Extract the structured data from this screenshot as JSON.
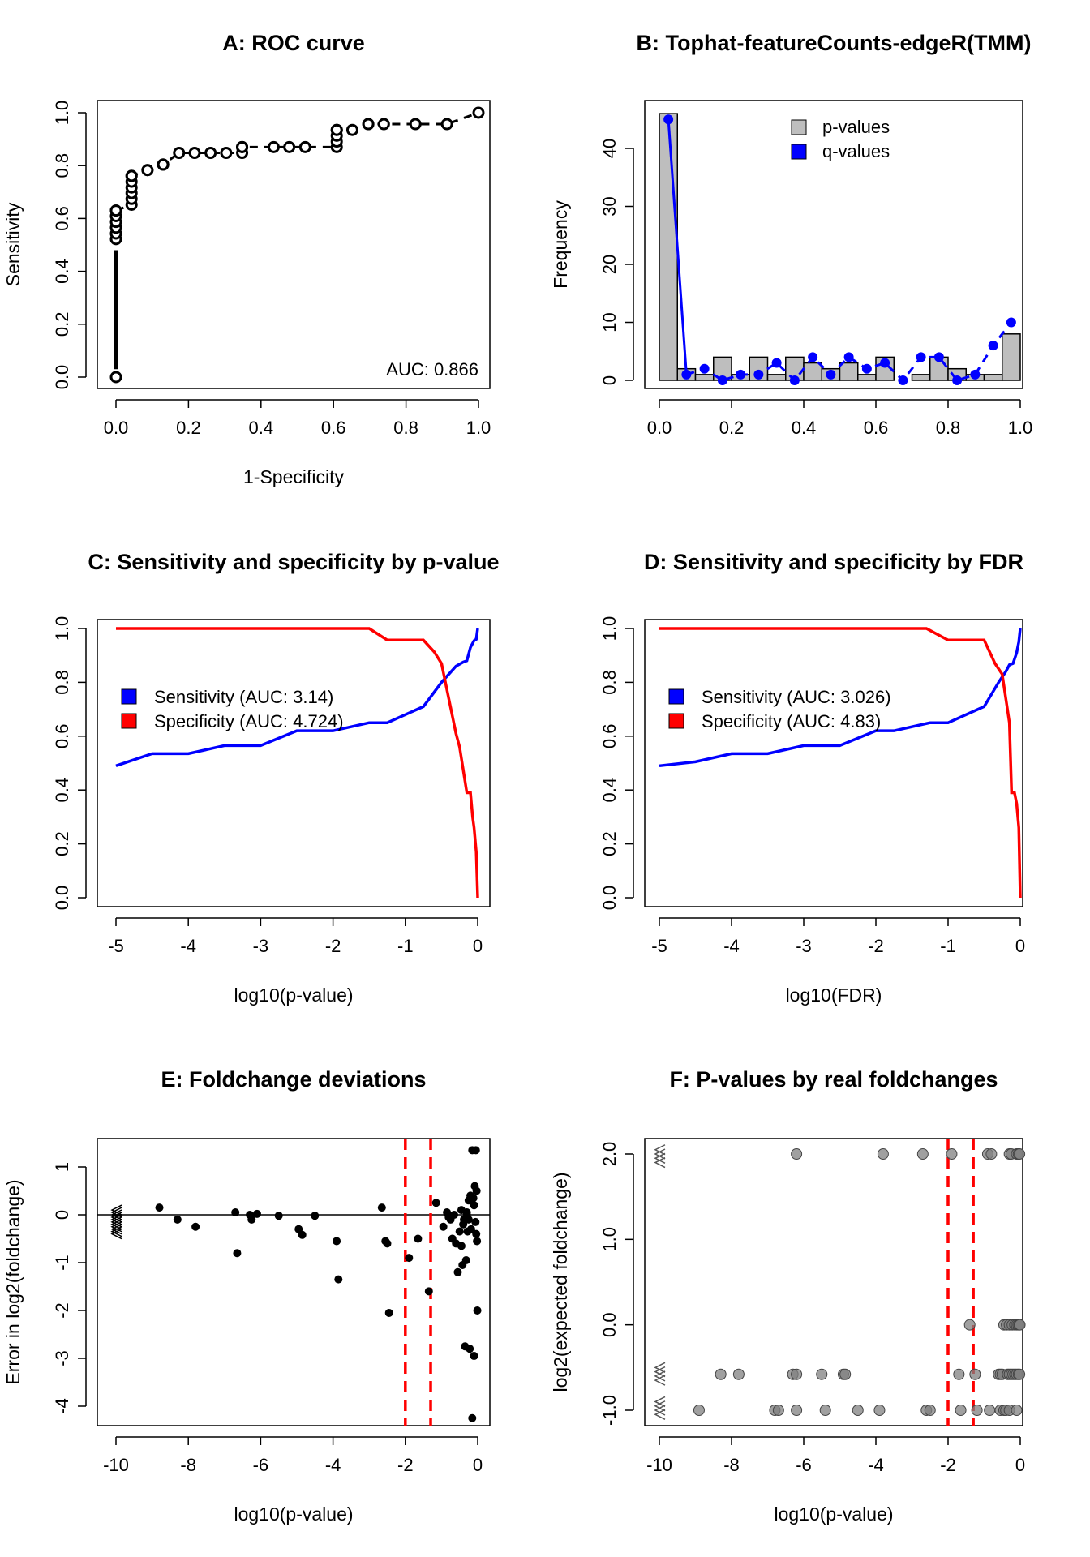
{
  "chart_data": [
    {
      "id": "A",
      "type": "scatter",
      "title": "A: ROC curve",
      "xlabel": "1-Specificity",
      "ylabel": "Sensitivity",
      "xlim": [
        0,
        1
      ],
      "ylim": [
        0,
        1
      ],
      "xticks": [
        0,
        0.2,
        0.4,
        0.6,
        0.8,
        1
      ],
      "xtick_labels": [
        "0.0",
        "0.2",
        "0.4",
        "0.6",
        "0.8",
        "1.0"
      ],
      "yticks": [
        0,
        0.2,
        0.4,
        0.6,
        0.8,
        1
      ],
      "ytick_labels": [
        "0.0",
        "0.2",
        "0.4",
        "0.6",
        "0.8",
        "1.0"
      ],
      "annotation": "AUC: 0.866",
      "x": [
        0,
        0,
        0,
        0,
        0,
        0,
        0,
        0,
        0.043,
        0.043,
        0.043,
        0.043,
        0.043,
        0.043,
        0.043,
        0.087,
        0.087,
        0.13,
        0.13,
        0.13,
        0.174,
        0.217,
        0.261,
        0.304,
        0.348,
        0.348,
        0.348,
        0.348,
        0.435,
        0.478,
        0.522,
        0.609,
        0.609,
        0.609,
        0.609,
        0.609,
        0.652,
        0.696,
        0.696,
        0.739,
        0.826,
        0.913,
        1.0
      ],
      "y": [
        0,
        0.522,
        0.543,
        0.565,
        0.587,
        0.609,
        0.63,
        0.63,
        0.652,
        0.674,
        0.696,
        0.717,
        0.739,
        0.761,
        0.761,
        0.783,
        0.783,
        0.804,
        0.804,
        0.804,
        0.848,
        0.848,
        0.848,
        0.848,
        0.848,
        0.87,
        0.87,
        0.87,
        0.87,
        0.87,
        0.87,
        0.87,
        0.891,
        0.913,
        0.935,
        0.935,
        0.935,
        0.957,
        0.957,
        0.957,
        0.957,
        0.957,
        1.0
      ],
      "color": "#000000"
    },
    {
      "id": "B",
      "type": "bar",
      "title": "B: Tophat-featureCounts-edgeR(TMM)",
      "xlabel": "",
      "ylabel": "Frequency",
      "xlim": [
        0,
        1
      ],
      "ylim": [
        0,
        47
      ],
      "xticks": [
        0,
        0.2,
        0.4,
        0.6,
        0.8,
        1
      ],
      "xtick_labels": [
        "0.0",
        "0.2",
        "0.4",
        "0.6",
        "0.8",
        "1.0"
      ],
      "yticks": [
        0,
        10,
        20,
        30,
        40
      ],
      "ytick_labels": [
        "0",
        "10",
        "20",
        "30",
        "40"
      ],
      "bin_width": 0.05,
      "legend": [
        "p-values",
        "q-values"
      ],
      "legend_position": "top-center",
      "series": [
        {
          "name": "p-values",
          "type": "bar",
          "color": "#bebebe",
          "values": [
            46,
            2,
            1,
            4,
            1,
            4,
            1,
            4,
            3,
            2,
            3,
            1,
            4,
            0,
            1,
            4,
            2,
            1,
            1,
            8
          ]
        },
        {
          "name": "q-values",
          "type": "line",
          "color": "#0000ff",
          "values": [
            45,
            1,
            2,
            0,
            1,
            1,
            3,
            0,
            4,
            1,
            4,
            2,
            3,
            0,
            4,
            4,
            0,
            1,
            6,
            10
          ]
        }
      ]
    },
    {
      "id": "C",
      "type": "line",
      "title": "C: Sensitivity and specificity by p-value",
      "xlabel": "log10(p-value)",
      "ylabel": "",
      "xlim": [
        -5,
        0
      ],
      "ylim": [
        0,
        1
      ],
      "xticks": [
        -5,
        -4,
        -3,
        -2,
        -1,
        0
      ],
      "xtick_labels": [
        "-5",
        "-4",
        "-3",
        "-2",
        "-1",
        "0"
      ],
      "yticks": [
        0,
        0.2,
        0.4,
        0.6,
        0.8,
        1
      ],
      "ytick_labels": [
        "0.0",
        "0.2",
        "0.4",
        "0.6",
        "0.8",
        "1.0"
      ],
      "legend": [
        "Sensitivity (AUC: 3.14)",
        "Specificity (AUC: 4.724)"
      ],
      "legend_position": "middle-left",
      "series": [
        {
          "name": "Sensitivity (AUC: 3.14)",
          "color": "#0000ff",
          "x": [
            -5,
            -4.5,
            -4,
            -3.5,
            -3,
            -2.5,
            -2,
            -1.5,
            -1.25,
            -0.75,
            -0.5,
            -0.4,
            -0.3,
            -0.2,
            -0.15,
            -0.1,
            -0.05,
            -0.02,
            0
          ],
          "y": [
            0.49,
            0.535,
            0.535,
            0.565,
            0.565,
            0.62,
            0.62,
            0.65,
            0.65,
            0.71,
            0.8,
            0.83,
            0.86,
            0.875,
            0.88,
            0.93,
            0.955,
            0.96,
            1.0
          ]
        },
        {
          "name": "Specificity (AUC: 4.724)",
          "color": "#ff0000",
          "x": [
            -5,
            -1.5,
            -1.25,
            -0.75,
            -0.6,
            -0.5,
            -0.4,
            -0.3,
            -0.25,
            -0.15,
            -0.12,
            -0.1,
            -0.07,
            -0.05,
            -0.02,
            0
          ],
          "y": [
            1,
            1,
            0.957,
            0.957,
            0.913,
            0.87,
            0.74,
            0.61,
            0.56,
            0.39,
            0.39,
            0.39,
            0.3,
            0.26,
            0.17,
            0
          ]
        }
      ]
    },
    {
      "id": "D",
      "type": "line",
      "title": "D: Sensitivity and specificity by FDR",
      "xlabel": "log10(FDR)",
      "ylabel": "",
      "xlim": [
        -5,
        0
      ],
      "ylim": [
        0,
        1
      ],
      "xticks": [
        -5,
        -4,
        -3,
        -2,
        -1,
        0
      ],
      "xtick_labels": [
        "-5",
        "-4",
        "-3",
        "-2",
        "-1",
        "0"
      ],
      "yticks": [
        0,
        0.2,
        0.4,
        0.6,
        0.8,
        1
      ],
      "ytick_labels": [
        "0.0",
        "0.2",
        "0.4",
        "0.6",
        "0.8",
        "1.0"
      ],
      "legend": [
        "Sensitivity (AUC: 3.026)",
        "Specificity (AUC: 4.83)"
      ],
      "legend_position": "middle-left",
      "series": [
        {
          "name": "Sensitivity (AUC: 3.026)",
          "color": "#0000ff",
          "x": [
            -5,
            -4.5,
            -4,
            -3.5,
            -3,
            -2.5,
            -2,
            -1.75,
            -1.25,
            -1,
            -0.5,
            -0.3,
            -0.2,
            -0.15,
            -0.1,
            -0.05,
            -0.02,
            0
          ],
          "y": [
            0.49,
            0.505,
            0.535,
            0.535,
            0.565,
            0.565,
            0.62,
            0.62,
            0.65,
            0.65,
            0.71,
            0.8,
            0.84,
            0.865,
            0.87,
            0.91,
            0.95,
            1.0
          ]
        },
        {
          "name": "Specificity (AUC: 4.83)",
          "color": "#ff0000",
          "x": [
            -5,
            -1.3,
            -1,
            -0.5,
            -0.35,
            -0.25,
            -0.2,
            -0.15,
            -0.12,
            -0.08,
            -0.05,
            -0.02,
            0
          ],
          "y": [
            1,
            1,
            0.957,
            0.957,
            0.87,
            0.83,
            0.74,
            0.65,
            0.39,
            0.39,
            0.35,
            0.26,
            0
          ]
        }
      ]
    },
    {
      "id": "E",
      "type": "scatter",
      "title": "E: Foldchange deviations",
      "xlabel": "log10(p-value)",
      "ylabel": "Error in log2(foldchange)",
      "xlim": [
        -10,
        0
      ],
      "ylim": [
        -4.3,
        1.5
      ],
      "xticks": [
        -10,
        -8,
        -6,
        -4,
        -2,
        0
      ],
      "xtick_labels": [
        "-10",
        "-8",
        "-6",
        "-4",
        "-2",
        "0"
      ],
      "yticks": [
        -4,
        -3,
        -2,
        -1,
        0,
        1
      ],
      "ytick_labels": [
        "-4",
        "-3",
        "-2",
        "-1",
        "0",
        "1"
      ],
      "hline": 0,
      "vlines": [
        -2,
        -1.3
      ],
      "vline_color": "#ff0000",
      "clipped_points_y": [
        0.1,
        0.05,
        0,
        -0.05,
        -0.1,
        -0.15,
        -0.2,
        -0.25,
        -0.3,
        -0.35,
        -0.4
      ],
      "x": [
        -8.8,
        -8.3,
        -7.8,
        -6.7,
        -6.65,
        -6.3,
        -6.25,
        -6.1,
        -5.5,
        -4.95,
        -4.85,
        -4.5,
        -3.9,
        -3.85,
        -2.65,
        -2.55,
        -2.5,
        -2.45,
        -1.9,
        -1.65,
        -1.35,
        -1.15,
        -0.95,
        -0.85,
        -0.8,
        -0.75,
        -0.7,
        -0.65,
        -0.6,
        -0.55,
        -0.5,
        -0.45,
        -0.42,
        -0.4,
        -0.38,
        -0.35,
        -0.32,
        -0.3,
        -0.28,
        -0.25,
        -0.22,
        -0.2,
        -0.18,
        -0.15,
        -0.12,
        -0.1,
        -0.08,
        -0.06,
        -0.05,
        -0.04,
        -0.03,
        -0.02,
        -0.01,
        -0.3,
        -0.1,
        -0.45,
        -0.25,
        -0.15
      ],
      "y": [
        0.15,
        -0.1,
        -0.25,
        0.05,
        -0.8,
        0,
        -0.1,
        0.02,
        -0.02,
        -0.3,
        -0.42,
        -0.02,
        -0.55,
        -1.35,
        0.15,
        -0.55,
        -0.6,
        -2.05,
        -0.9,
        -0.5,
        -1.6,
        0.25,
        -0.25,
        0.05,
        -0.05,
        -0.1,
        -0.5,
        0.0,
        -0.6,
        -1.2,
        -0.35,
        0.1,
        -1.05,
        -0.2,
        -0.1,
        -2.75,
        -0.95,
        0.0,
        -0.35,
        0.3,
        -2.8,
        0.4,
        -0.3,
        1.35,
        0.35,
        0.2,
        0.6,
        -0.15,
        1.35,
        -0.4,
        0.5,
        -0.55,
        -2.0,
        0.05,
        -2.95,
        -0.65,
        -0.1,
        -4.25
      ],
      "color": "#000000"
    },
    {
      "id": "F",
      "type": "scatter",
      "title": "F: P-values by real foldchanges",
      "xlabel": "log10(p-value)",
      "ylabel": "log2(expected foldchange)",
      "xlim": [
        -10,
        0
      ],
      "ylim": [
        -1.1,
        2.1
      ],
      "xticks": [
        -10,
        -8,
        -6,
        -4,
        -2,
        0
      ],
      "xtick_labels": [
        "-10",
        "-8",
        "-6",
        "-4",
        "-2",
        "0"
      ],
      "yticks": [
        -1,
        0,
        1,
        2
      ],
      "ytick_labels": [
        "-1.0",
        "0.0",
        "1.0",
        "2.0"
      ],
      "vlines": [
        -2,
        -1.3
      ],
      "vline_color": "#ff0000",
      "clipped_points_y": [
        2.05,
        2.0,
        1.95,
        1.9,
        -0.5,
        -0.55,
        -0.6,
        -0.65,
        -0.9,
        -0.95,
        -1.0,
        -1.05
      ],
      "x": [
        -6.2,
        -3.8,
        -2.7,
        -1.9,
        -0.9,
        -0.8,
        -0.3,
        -0.25,
        -0.1,
        -0.05,
        -0.02,
        -1.4,
        -0.45,
        -0.38,
        -0.3,
        -0.22,
        -0.15,
        -0.1,
        -0.06,
        -0.03,
        -0.01,
        -8.3,
        -7.8,
        -6.3,
        -6.2,
        -5.5,
        -4.9,
        -4.85,
        -1.7,
        -1.25,
        -0.6,
        -0.55,
        -0.5,
        -0.35,
        -0.3,
        -0.25,
        -0.2,
        -0.15,
        -0.1,
        -0.05,
        -0.02,
        -8.9,
        -6.8,
        -6.7,
        -6.2,
        -5.4,
        -4.5,
        -3.9,
        -2.6,
        -2.5,
        -1.65,
        -1.2,
        -0.85,
        -0.55,
        -0.45,
        -0.4,
        -0.3,
        -0.1
      ],
      "y": [
        2,
        2,
        2,
        2,
        2,
        2,
        2,
        2,
        2,
        2,
        2,
        0,
        0,
        0,
        0,
        0,
        0,
        0,
        0,
        0,
        0,
        -0.58,
        -0.58,
        -0.58,
        -0.58,
        -0.58,
        -0.58,
        -0.58,
        -0.58,
        -0.58,
        -0.58,
        -0.58,
        -0.58,
        -0.58,
        -0.58,
        -0.58,
        -0.58,
        -0.58,
        -0.58,
        -0.58,
        -0.58,
        -1,
        -1,
        -1,
        -1,
        -1,
        -1,
        -1,
        -1,
        -1,
        -1,
        -1,
        -1,
        -1,
        -1,
        -1,
        -1,
        -1
      ],
      "color": "#808080"
    }
  ]
}
